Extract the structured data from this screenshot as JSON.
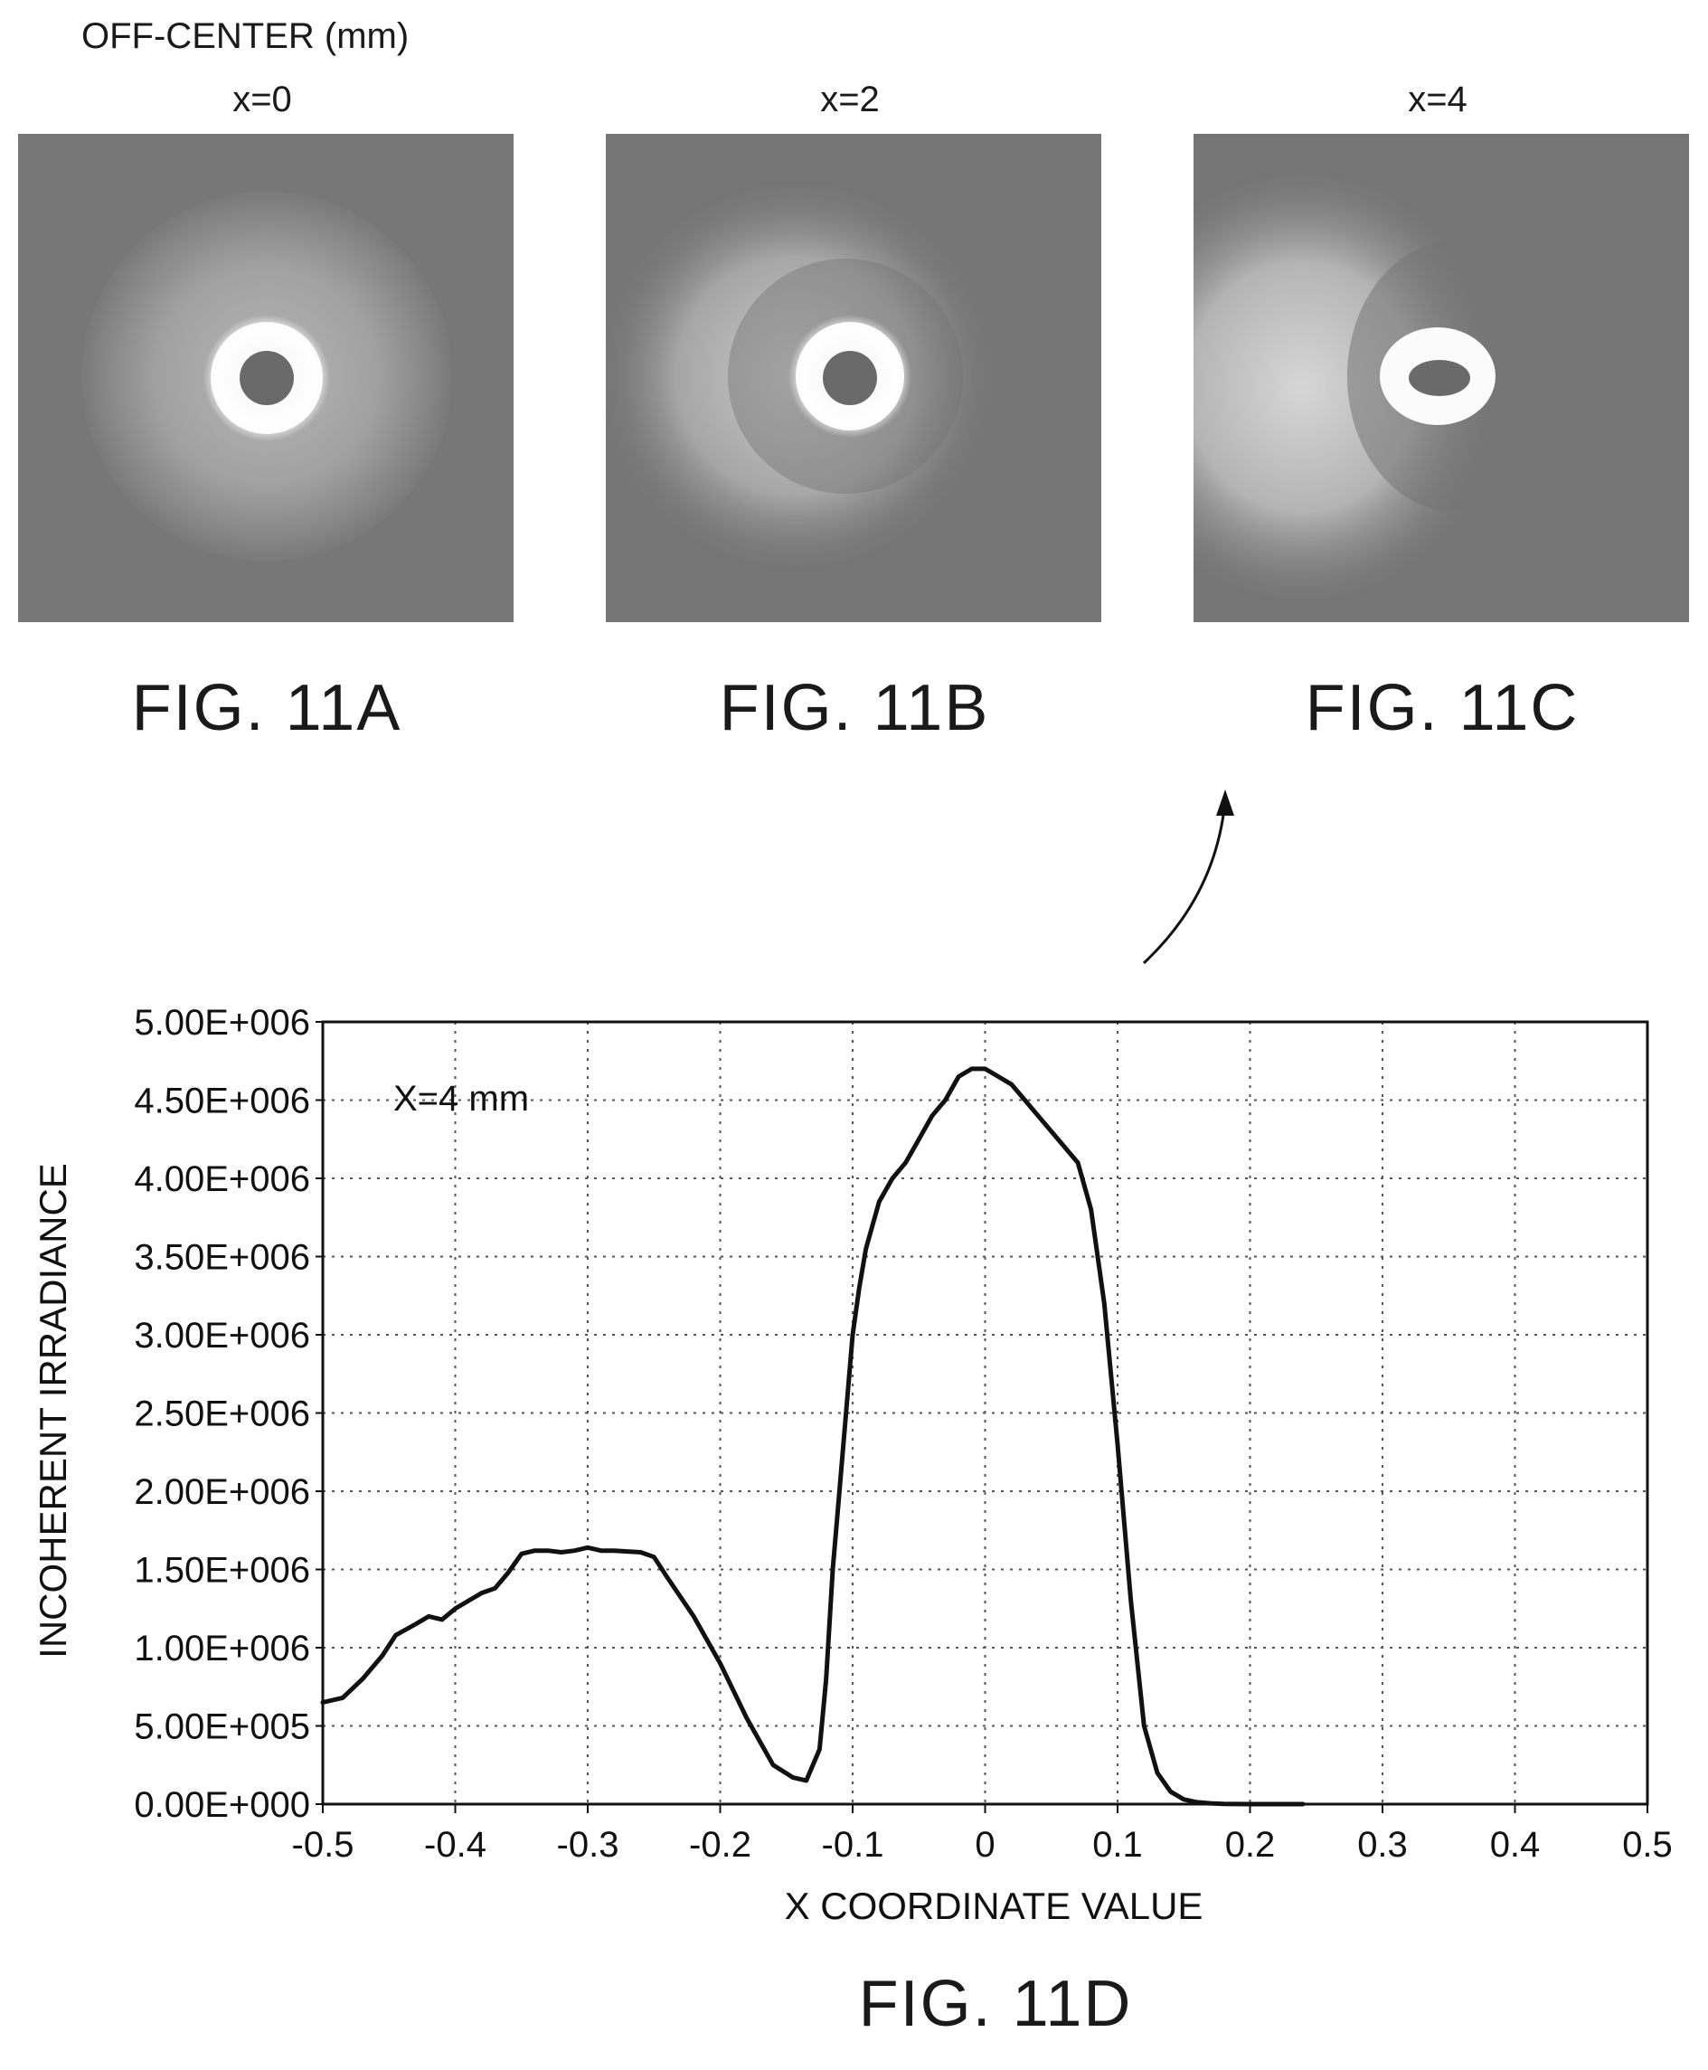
{
  "header": {
    "title": "OFF-CENTER (mm)"
  },
  "panels": [
    {
      "x_label": "x=0",
      "fig_label": "FIG. 11A",
      "shift": 0
    },
    {
      "x_label": "x=2",
      "fig_label": "FIG. 11B",
      "shift": 2
    },
    {
      "x_label": "x=4",
      "fig_label": "FIG. 11C",
      "shift": 4
    }
  ],
  "chart_figure_label": "FIG. 11D",
  "chart_data": {
    "type": "line",
    "annotation": "X=4 mm",
    "xlabel": "X COORDINATE VALUE",
    "ylabel": "INCOHERENT IRRADIANCE",
    "xlim": [
      -0.5,
      0.5
    ],
    "ylim": [
      0,
      5000000
    ],
    "x_ticks": [
      "-0.5",
      "-0.4",
      "-0.3",
      "-0.2",
      "-0.1",
      "0",
      "0.1",
      "0.2",
      "0.3",
      "0.4",
      "0.5"
    ],
    "y_ticks": [
      "0.00E+000",
      "5.00E+005",
      "1.00E+006",
      "1.50E+006",
      "2.00E+006",
      "2.50E+006",
      "3.00E+006",
      "3.50E+006",
      "4.00E+006",
      "4.50E+006",
      "5.00E+006"
    ],
    "grid": true,
    "series": [
      {
        "color": "#111111",
        "x": [
          -0.5,
          -0.485,
          -0.47,
          -0.455,
          -0.445,
          -0.43,
          -0.42,
          -0.41,
          -0.4,
          -0.39,
          -0.38,
          -0.37,
          -0.36,
          -0.35,
          -0.34,
          -0.33,
          -0.32,
          -0.31,
          -0.3,
          -0.29,
          -0.28,
          -0.26,
          -0.25,
          -0.24,
          -0.22,
          -0.2,
          -0.18,
          -0.16,
          -0.145,
          -0.135,
          -0.125,
          -0.12,
          -0.115,
          -0.11,
          -0.105,
          -0.1,
          -0.095,
          -0.09,
          -0.08,
          -0.07,
          -0.06,
          -0.05,
          -0.04,
          -0.03,
          -0.02,
          -0.01,
          -0.005,
          0,
          0.01,
          0.02,
          0.03,
          0.04,
          0.05,
          0.06,
          0.07,
          0.08,
          0.09,
          0.1,
          0.11,
          0.12,
          0.13,
          0.14,
          0.15,
          0.16,
          0.17,
          0.18,
          0.2,
          0.22,
          0.24
        ],
        "y": [
          650000,
          680000,
          800000,
          950000,
          1080000,
          1150000,
          1200000,
          1180000,
          1250000,
          1300000,
          1350000,
          1380000,
          1480000,
          1600000,
          1620000,
          1620000,
          1610000,
          1620000,
          1640000,
          1620000,
          1620000,
          1610000,
          1580000,
          1450000,
          1200000,
          900000,
          550000,
          250000,
          170000,
          150000,
          350000,
          800000,
          1500000,
          2000000,
          2500000,
          3000000,
          3300000,
          3550000,
          3850000,
          4000000,
          4100000,
          4250000,
          4400000,
          4500000,
          4650000,
          4700000,
          4700000,
          4700000,
          4650000,
          4600000,
          4500000,
          4400000,
          4300000,
          4200000,
          4100000,
          3800000,
          3200000,
          2300000,
          1300000,
          500000,
          200000,
          80000,
          30000,
          12000,
          5000,
          2000,
          0,
          0,
          0
        ]
      }
    ]
  }
}
